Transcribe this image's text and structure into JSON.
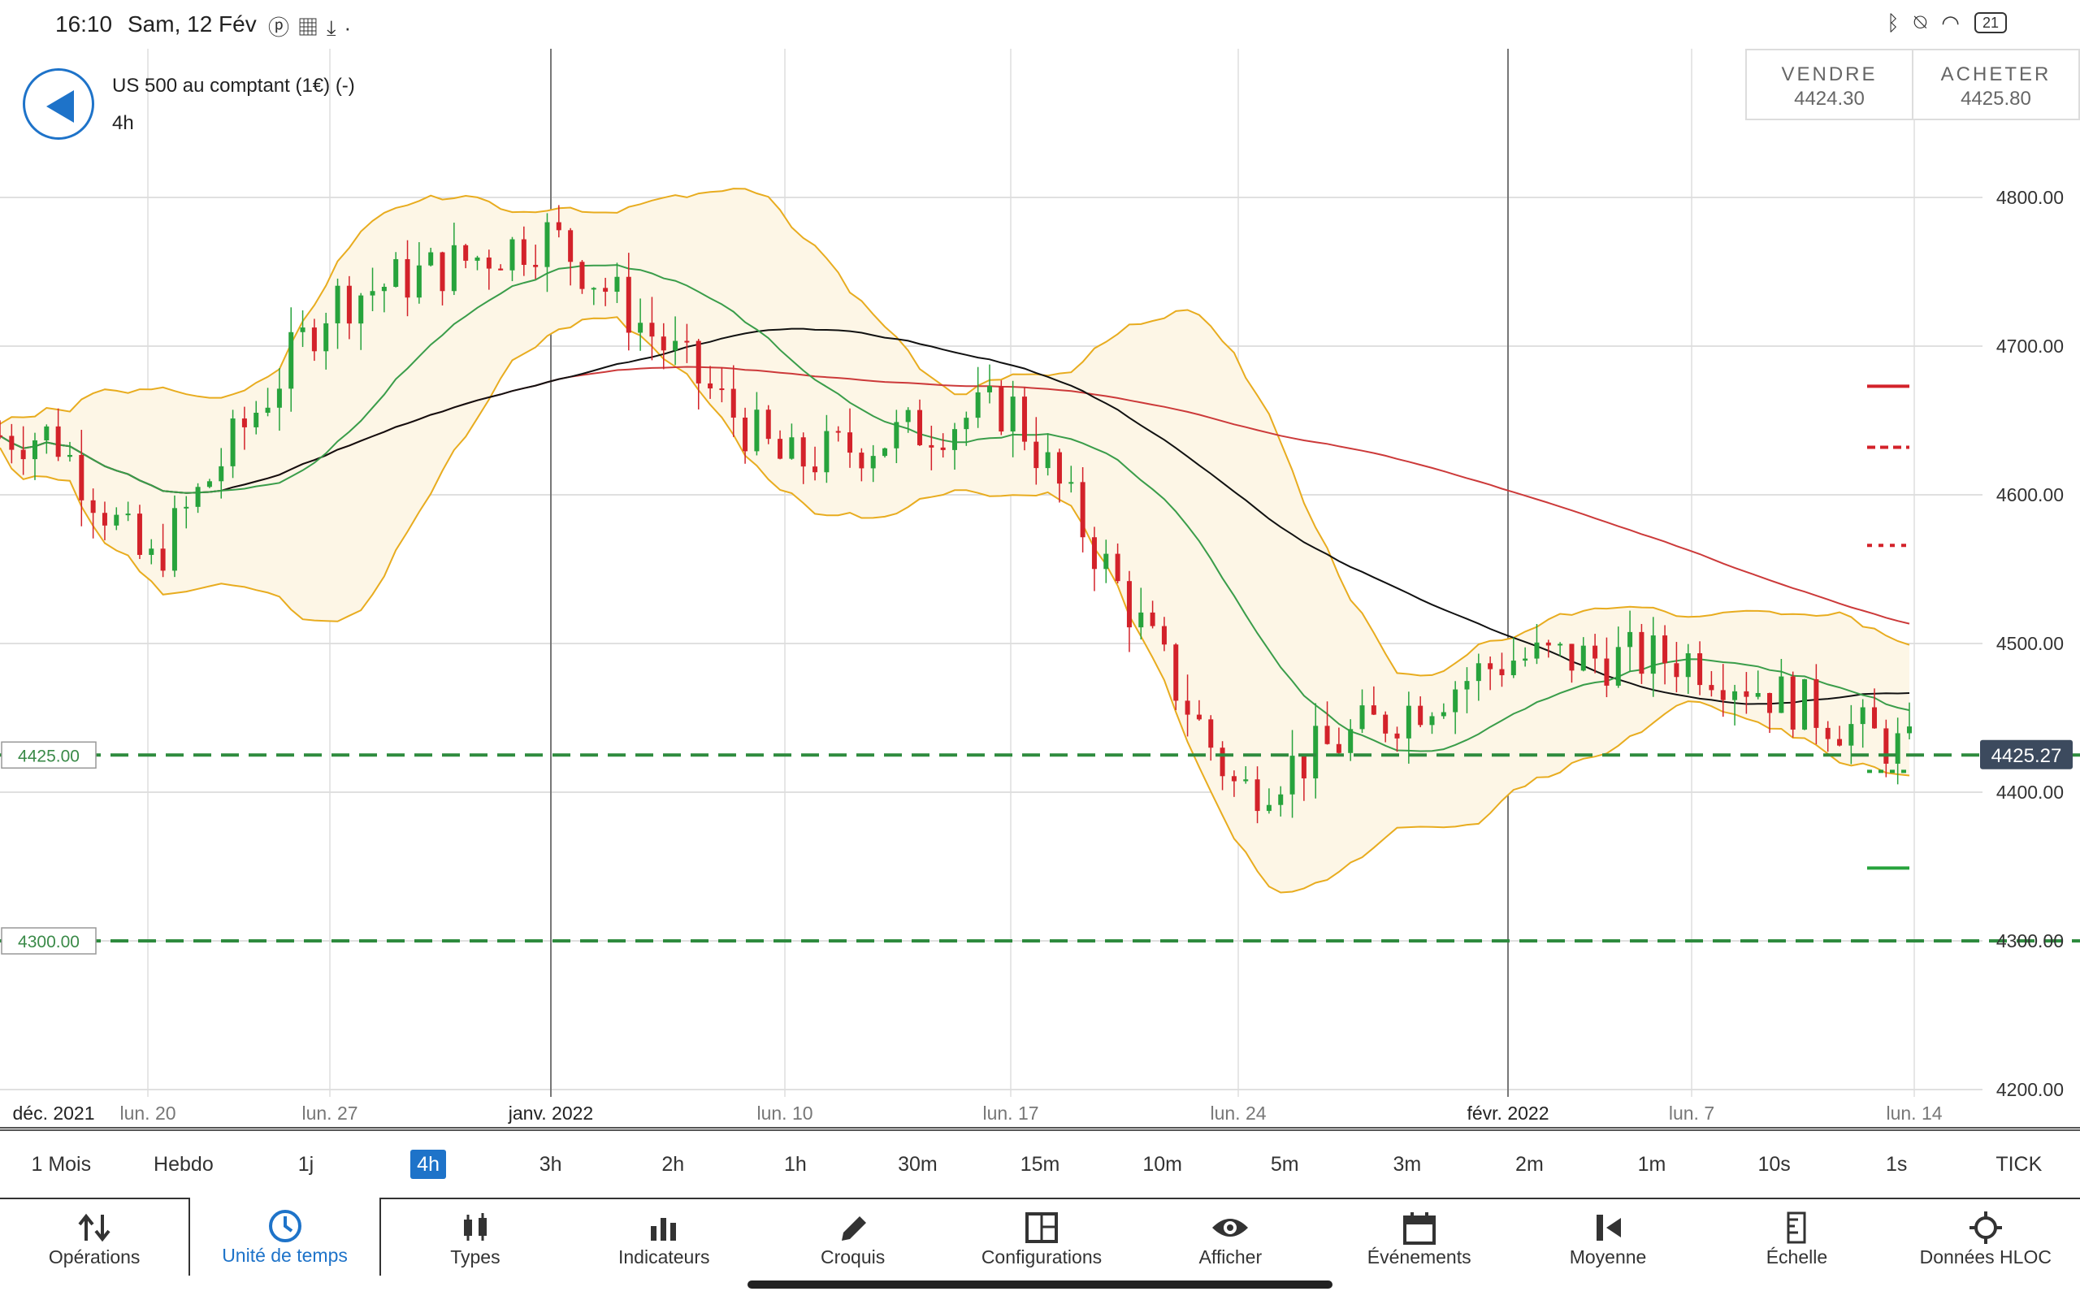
{
  "status_bar": {
    "time": "16:10",
    "date": "Sam, 12 Fév",
    "left_icons": [
      "pinterest-icon",
      "chart-app-icon",
      "download-icon",
      "dot-icon"
    ],
    "right_icons": [
      "bluetooth-icon",
      "alarm-off-icon",
      "wifi-icon"
    ],
    "battery": "21"
  },
  "header": {
    "instrument": "US 500 au comptant (1€) (-)",
    "timeframe": "4h",
    "sell_label": "VENDRE",
    "sell_price": "4424.30",
    "buy_label": "ACHETER",
    "buy_price": "4425.80"
  },
  "chart": {
    "price_labels": [
      "4800.00",
      "4700.00",
      "4600.00",
      "4500.00",
      "4400.00",
      "4300.00",
      "4200.00"
    ],
    "date_labels": [
      "déc. 2021",
      "lun. 20",
      "lun. 27",
      "janv. 2022",
      "lun. 10",
      "lun. 17",
      "lun. 24",
      "févr. 2022",
      "lun. 7",
      "lun. 14"
    ],
    "current_price": "4425.27",
    "level_1": "4425.00",
    "level_2": "4300.00",
    "colors": {
      "bull": "#27a33c",
      "bear": "#d3222a",
      "bollinger": "#e8ac1f",
      "ma_green": "#3a9d4a",
      "ma_black": "#111111",
      "ma_red": "#cc3a3a",
      "level_line": "#2e8b3e",
      "price_tag": "#3c4a5e"
    }
  },
  "chart_data": {
    "type": "candlestick",
    "title": "US 500 au comptant (1€) (-)",
    "timeframe": "4h",
    "ylim": [
      4200,
      4850
    ],
    "y_ticks": [
      4200,
      4300,
      4400,
      4500,
      4600,
      4700,
      4800
    ],
    "x_labels": [
      "déc. 2021",
      "lun. 20",
      "lun. 27",
      "janv. 2022",
      "lun. 10",
      "lun. 17",
      "lun. 24",
      "févr. 2022",
      "lun. 7",
      "lun. 14"
    ],
    "approx_close_path": [
      {
        "x": "déc. 2021",
        "y": 4640
      },
      {
        "x": "lun. 20",
        "y": 4550
      },
      {
        "x": "lun. 27",
        "y": 4730
      },
      {
        "x": "janv. 2022",
        "y": 4775
      },
      {
        "x": "lun. 10",
        "y": 4620
      },
      {
        "x": "lun. 17",
        "y": 4660
      },
      {
        "x": "lun. 24",
        "y": 4400
      },
      {
        "x": "févr. 2022",
        "y": 4490
      },
      {
        "x": "lun. 7",
        "y": 4490
      },
      {
        "x": "lun. 14",
        "y": 4425
      }
    ],
    "horizontal_levels": [
      4425.0,
      4300.0
    ],
    "current_price": 4425.27
  },
  "timeframes": [
    "1 Mois",
    "Hebdo",
    "1j",
    "4h",
    "3h",
    "2h",
    "1h",
    "30m",
    "15m",
    "10m",
    "5m",
    "3m",
    "2m",
    "1m",
    "10s",
    "1s",
    "TICK"
  ],
  "active_timeframe": "4h",
  "toolbar": [
    {
      "label": "Opérations",
      "icon": "sort-arrows-icon"
    },
    {
      "label": "Unité de temps",
      "icon": "clock-icon"
    },
    {
      "label": "Types",
      "icon": "candlestick-icon"
    },
    {
      "label": "Indicateurs",
      "icon": "bar-chart-icon"
    },
    {
      "label": "Croquis",
      "icon": "pencil-icon"
    },
    {
      "label": "Configurations",
      "icon": "layout-icon"
    },
    {
      "label": "Afficher",
      "icon": "eye-icon"
    },
    {
      "label": "Événements",
      "icon": "calendar-icon"
    },
    {
      "label": "Moyenne",
      "icon": "average-icon"
    },
    {
      "label": "Échelle",
      "icon": "scale-icon"
    },
    {
      "label": "Données HLOC",
      "icon": "crosshair-icon"
    }
  ],
  "active_tool": "Unité de temps"
}
